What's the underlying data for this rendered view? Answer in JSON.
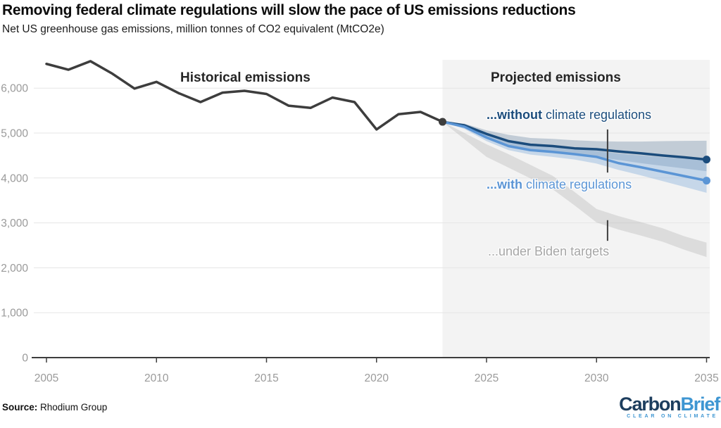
{
  "header": {
    "title": "Removing federal climate regulations will slow the pace of US emissions reductions",
    "subtitle": "Net US greenhouse gas emissions, million tonnes of CO2 equivalent (MtCO2e)"
  },
  "annotations": {
    "historical": "Historical emissions",
    "projected": "Projected emissions",
    "without_bold": "...without",
    "without_rest": " climate regulations",
    "with_bold": "...with",
    "with_rest": " climate regulations",
    "biden": "...under Biden targets"
  },
  "footer": {
    "source_label": "Source:",
    "source_value": " Rhodium Group",
    "logo_part1": "Carbon",
    "logo_part2": "Brief",
    "logo_tagline": "CLEAR ON CLIMATE"
  },
  "colors": {
    "historical": "#3d3d3d",
    "without": "#1b4c7c",
    "with": "#5b95d5",
    "without_band": "rgba(84,117,150,0.30)",
    "with_band": "rgba(125,170,218,0.38)",
    "biden_band": "rgba(160,160,160,0.28)",
    "projected_bg": "#f3f3f3",
    "grid": "#e5e5e5",
    "axis": "#3d3d3d",
    "tick_label": "#9a9a9a"
  },
  "chart_data": {
    "type": "line",
    "title": "Removing federal climate regulations will slow the pace of US emissions reductions",
    "subtitle": "Net US greenhouse gas emissions, million tonnes of CO2 equivalent (MtCO2e)",
    "xlabel": "",
    "ylabel": "MtCO2e",
    "xlim": [
      2004.4,
      2035.2
    ],
    "ylim": [
      0,
      6630
    ],
    "grid": true,
    "legend": "inline annotations",
    "projection_start": 2023,
    "x_ticks": [
      2005,
      2010,
      2015,
      2020,
      2025,
      2030,
      2035
    ],
    "y_ticks": [
      0,
      1000,
      2000,
      3000,
      4000,
      5000,
      6000
    ],
    "series": [
      {
        "id": "historical",
        "name": "Historical emissions",
        "color": "#3d3d3d",
        "years": [
          2005,
          2006,
          2007,
          2008,
          2009,
          2010,
          2011,
          2012,
          2013,
          2014,
          2015,
          2016,
          2017,
          2018,
          2019,
          2020,
          2021,
          2022,
          2023
        ],
        "values": [
          6540,
          6410,
          6600,
          6320,
          5990,
          6140,
          5890,
          5690,
          5900,
          5940,
          5870,
          5610,
          5560,
          5790,
          5690,
          5080,
          5420,
          5470,
          5250
        ]
      },
      {
        "id": "biden",
        "name": "...under Biden targets",
        "color": "#c9c9c9",
        "draw_line": false,
        "band_color": "rgba(160,160,160,0.28)",
        "years": [
          2023,
          2024,
          2025,
          2026,
          2027,
          2028,
          2029,
          2030,
          2031,
          2032,
          2033,
          2034,
          2035
        ],
        "values": [
          5250,
          4930,
          4610,
          4380,
          4140,
          3900,
          3540,
          3160,
          3000,
          2870,
          2730,
          2550,
          2400
        ],
        "band": {
          "years": [
            2023,
            2024,
            2025,
            2026,
            2027,
            2028,
            2029,
            2030,
            2031,
            2032,
            2033,
            2034,
            2035
          ],
          "low": [
            5250,
            4860,
            4470,
            4230,
            3990,
            3750,
            3390,
            3010,
            2850,
            2720,
            2580,
            2400,
            2240
          ],
          "high": [
            5250,
            5000,
            4750,
            4530,
            4290,
            4050,
            3690,
            3310,
            3150,
            3020,
            2880,
            2700,
            2560
          ]
        }
      },
      {
        "id": "without",
        "name": "...without climate regulations",
        "color": "#1b4c7c",
        "band_color": "rgba(84,117,150,0.30)",
        "years": [
          2023,
          2024,
          2025,
          2026,
          2027,
          2028,
          2029,
          2030,
          2031,
          2032,
          2033,
          2034,
          2035
        ],
        "values": [
          5250,
          5170,
          4980,
          4820,
          4740,
          4710,
          4660,
          4640,
          4590,
          4550,
          4500,
          4460,
          4410
        ],
        "band": {
          "years": [
            2023,
            2024,
            2025,
            2026,
            2027,
            2028,
            2029,
            2030,
            2031,
            2032,
            2033,
            2034,
            2035
          ],
          "low": [
            5250,
            5120,
            4880,
            4700,
            4610,
            4570,
            4520,
            4470,
            4400,
            4330,
            4270,
            4210,
            4150
          ],
          "high": [
            5250,
            5210,
            5060,
            4960,
            4890,
            4870,
            4840,
            4820,
            4810,
            4810,
            4820,
            4825,
            4830
          ]
        }
      },
      {
        "id": "with",
        "name": "...with climate regulations",
        "color": "#5b95d5",
        "band_color": "rgba(125,170,218,0.38)",
        "years": [
          2023,
          2024,
          2025,
          2026,
          2027,
          2028,
          2029,
          2030,
          2031,
          2032,
          2033,
          2034,
          2035
        ],
        "values": [
          5250,
          5140,
          4900,
          4710,
          4620,
          4580,
          4530,
          4470,
          4330,
          4240,
          4140,
          4040,
          3940
        ],
        "band": {
          "years": [
            2023,
            2024,
            2025,
            2026,
            2027,
            2028,
            2029,
            2030,
            2031,
            2032,
            2033,
            2034,
            2035
          ],
          "low": [
            5250,
            5090,
            4820,
            4620,
            4520,
            4470,
            4410,
            4320,
            4180,
            4060,
            3930,
            3800,
            3670
          ],
          "high": [
            5250,
            5180,
            4980,
            4800,
            4710,
            4680,
            4650,
            4600,
            4540,
            4500,
            4460,
            4430,
            4420
          ]
        }
      }
    ],
    "markers": [
      {
        "name": "projection-start-dot",
        "year": 2023,
        "value": 5250,
        "color": "#3d3d3d"
      },
      {
        "name": "without-2035-dot",
        "year": 2035,
        "value": 4410,
        "color": "#1b4c7c"
      },
      {
        "name": "with-2035-dot",
        "year": 2035,
        "value": 3940,
        "color": "#5b95d5"
      }
    ],
    "callout_lines": [
      {
        "year": 2030.5,
        "from": 5080,
        "to": 4120
      },
      {
        "year": 2030.5,
        "from": 3060,
        "to": 2600
      }
    ]
  }
}
